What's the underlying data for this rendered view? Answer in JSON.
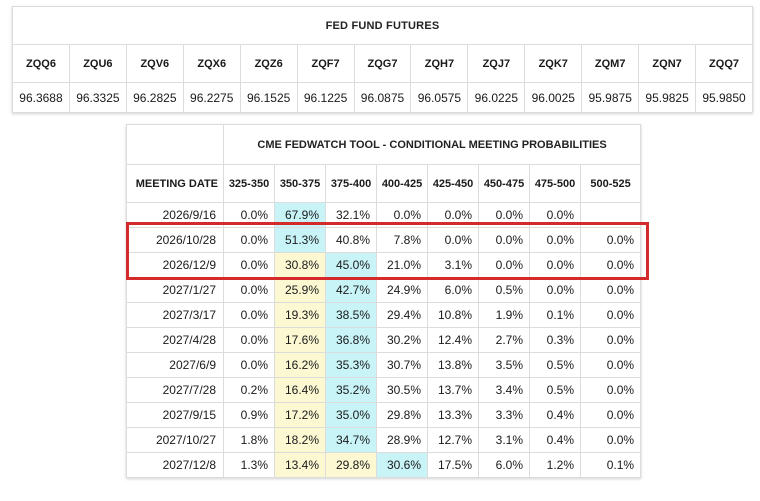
{
  "futures": {
    "title": "FED FUND FUTURES",
    "contracts": [
      {
        "code": "ZQQ6",
        "price": "96.3688"
      },
      {
        "code": "ZQU6",
        "price": "96.3325"
      },
      {
        "code": "ZQV6",
        "price": "96.2825"
      },
      {
        "code": "ZQX6",
        "price": "96.2275"
      },
      {
        "code": "ZQZ6",
        "price": "96.1525"
      },
      {
        "code": "ZQF7",
        "price": "96.1225"
      },
      {
        "code": "ZQG7",
        "price": "96.0875"
      },
      {
        "code": "ZQH7",
        "price": "96.0575"
      },
      {
        "code": "ZQJ7",
        "price": "96.0225"
      },
      {
        "code": "ZQK7",
        "price": "96.0025"
      },
      {
        "code": "ZQM7",
        "price": "95.9875"
      },
      {
        "code": "ZQN7",
        "price": "95.9825"
      },
      {
        "code": "ZQQ7",
        "price": "95.9850"
      }
    ]
  },
  "fedwatch": {
    "title": "CME FEDWATCH TOOL - CONDITIONAL MEETING PROBABILITIES",
    "date_header": "MEETING DATE",
    "ranges": [
      "325-350",
      "350-375",
      "375-400",
      "400-425",
      "425-450",
      "450-475",
      "475-500",
      "500-525"
    ],
    "rows": [
      {
        "date": "2026/9/16",
        "values": [
          "0.0%",
          "67.9%",
          "32.1%",
          "0.0%",
          "0.0%",
          "0.0%",
          "0.0%",
          ""
        ]
      },
      {
        "date": "2026/10/28",
        "values": [
          "0.0%",
          "51.3%",
          "40.8%",
          "7.8%",
          "0.0%",
          "0.0%",
          "0.0%",
          "0.0%"
        ]
      },
      {
        "date": "2026/12/9",
        "values": [
          "0.0%",
          "30.8%",
          "45.0%",
          "21.0%",
          "3.1%",
          "0.0%",
          "0.0%",
          "0.0%"
        ]
      },
      {
        "date": "2027/1/27",
        "values": [
          "0.0%",
          "25.9%",
          "42.7%",
          "24.9%",
          "6.0%",
          "0.5%",
          "0.0%",
          "0.0%"
        ]
      },
      {
        "date": "2027/3/17",
        "values": [
          "0.0%",
          "19.3%",
          "38.5%",
          "29.4%",
          "10.8%",
          "1.9%",
          "0.1%",
          "0.0%"
        ]
      },
      {
        "date": "2027/4/28",
        "values": [
          "0.0%",
          "17.6%",
          "36.8%",
          "30.2%",
          "12.4%",
          "2.7%",
          "0.3%",
          "0.0%"
        ]
      },
      {
        "date": "2027/6/9",
        "values": [
          "0.0%",
          "16.2%",
          "35.3%",
          "30.7%",
          "13.8%",
          "3.5%",
          "0.5%",
          "0.0%"
        ]
      },
      {
        "date": "2027/7/28",
        "values": [
          "0.2%",
          "16.4%",
          "35.2%",
          "30.5%",
          "13.7%",
          "3.4%",
          "0.5%",
          "0.0%"
        ]
      },
      {
        "date": "2027/9/15",
        "values": [
          "0.9%",
          "17.2%",
          "35.0%",
          "29.8%",
          "13.3%",
          "3.3%",
          "0.4%",
          "0.0%"
        ]
      },
      {
        "date": "2027/10/27",
        "values": [
          "1.8%",
          "18.2%",
          "34.7%",
          "28.9%",
          "12.7%",
          "3.1%",
          "0.4%",
          "0.0%"
        ]
      },
      {
        "date": "2027/12/8",
        "values": [
          "1.3%",
          "13.4%",
          "29.8%",
          "30.6%",
          "17.5%",
          "6.0%",
          "1.2%",
          "0.1%"
        ]
      }
    ],
    "highlight_colors": {
      "max": "#c8f4f8",
      "second": "#fbf8d2",
      "box": "#d42a2a"
    }
  }
}
